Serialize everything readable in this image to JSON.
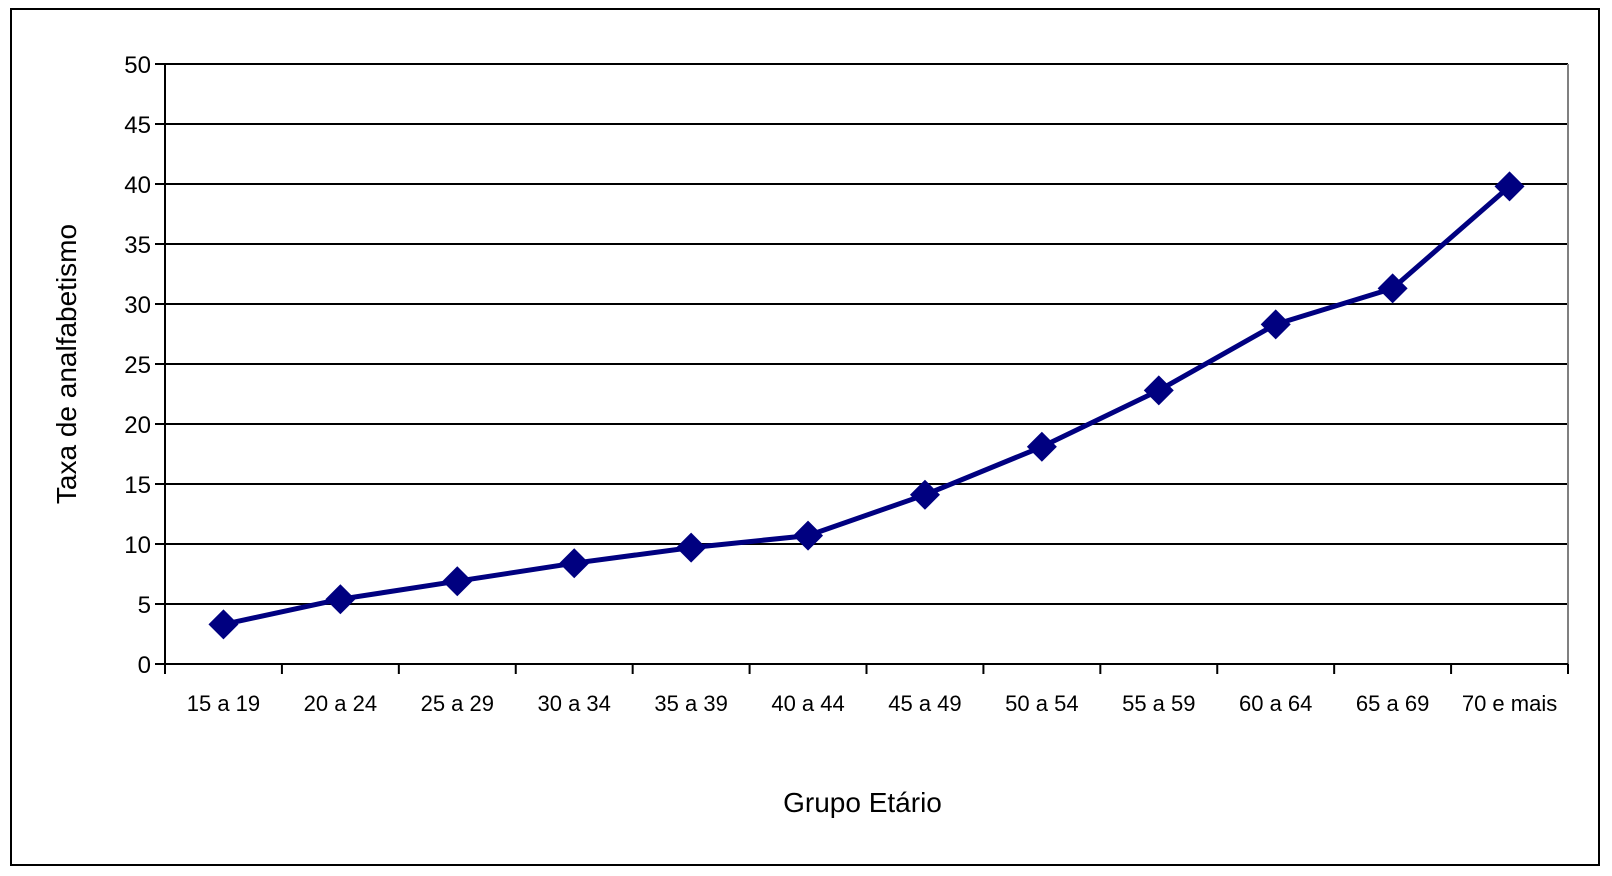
{
  "chart_data": {
    "type": "line",
    "title": "",
    "xlabel": "Grupo Etário",
    "ylabel": "Taxa de analfabetismo",
    "ylim": [
      0,
      50
    ],
    "yticks": [
      0,
      5,
      10,
      15,
      20,
      25,
      30,
      35,
      40,
      45,
      50
    ],
    "grid": true,
    "legend": "none",
    "categories": [
      "15 a 19",
      "20 a 24",
      "25 a 29",
      "30 a 34",
      "35 a 39",
      "40 a 44",
      "45 a 49",
      "50 a 54",
      "55 a 59",
      "60 a 64",
      "65 a 69",
      "70 e mais"
    ],
    "series": [
      {
        "values": [
          3.3,
          5.4,
          6.9,
          8.4,
          9.7,
          10.7,
          14.1,
          18.1,
          22.8,
          28.3,
          31.3,
          39.8
        ],
        "color": "#000080",
        "marker": "diamond"
      }
    ]
  }
}
